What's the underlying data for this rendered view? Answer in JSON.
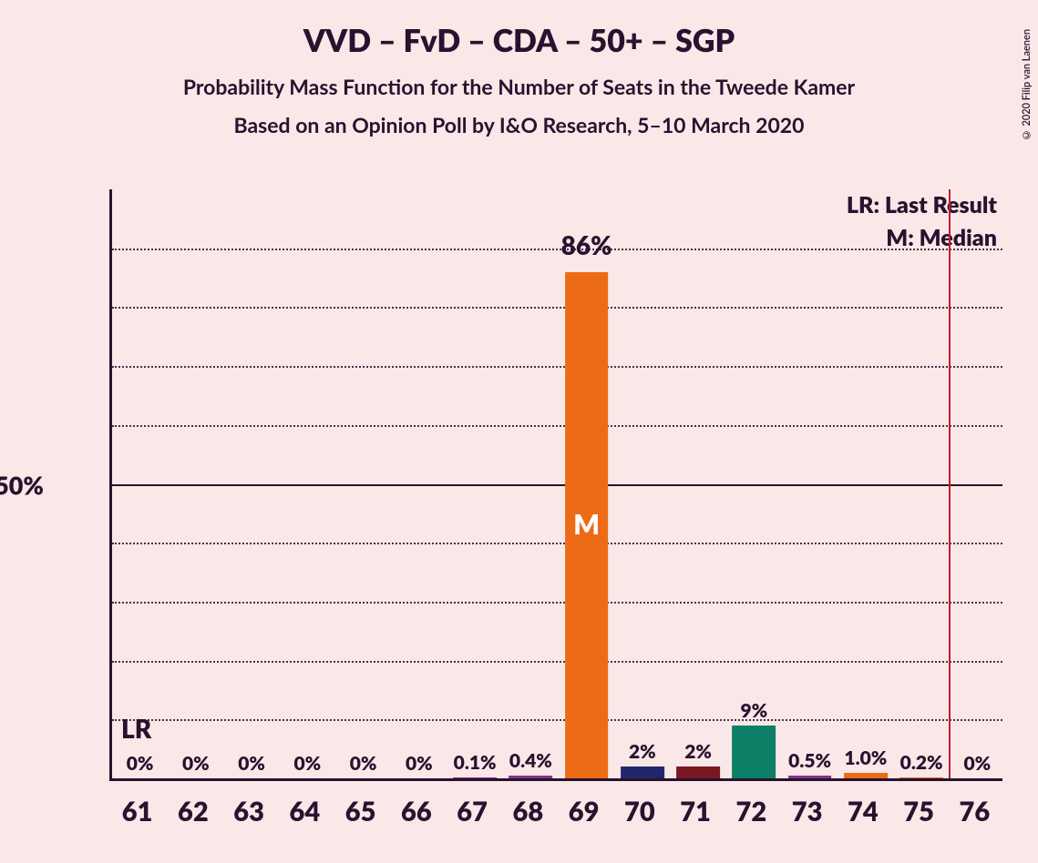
{
  "title": "VVD – FvD – CDA – 50+ – SGP",
  "subtitle": "Probability Mass Function for the Number of Seats in the Tweede Kamer",
  "subtitle2": "Based on an Opinion Poll by I&O Research, 5–10 March 2020",
  "copyright": "© 2020 Filip van Laenen",
  "legend": {
    "lr": "LR: Last Result",
    "m": "M: Median"
  },
  "chart": {
    "type": "bar",
    "background_color": "#fae7e7",
    "text_color": "#26132f",
    "y_axis": {
      "max": 100,
      "tick": 50,
      "tick_label": "50%",
      "grid_step": 10
    },
    "x_categories": [
      61,
      62,
      63,
      64,
      65,
      66,
      67,
      68,
      69,
      70,
      71,
      72,
      73,
      74,
      75,
      76
    ],
    "lr_position_between": [
      75,
      76
    ],
    "lr_label": "LR",
    "median_category": 69,
    "median_letter": "M",
    "bars": [
      {
        "x": 61,
        "v": 0,
        "label": "0%",
        "color": "#ed6b16"
      },
      {
        "x": 62,
        "v": 0,
        "label": "0%",
        "color": "#ed6b16"
      },
      {
        "x": 63,
        "v": 0,
        "label": "0%",
        "color": "#ed6b16"
      },
      {
        "x": 64,
        "v": 0,
        "label": "0%",
        "color": "#ed6b16"
      },
      {
        "x": 65,
        "v": 0,
        "label": "0%",
        "color": "#ed6b16"
      },
      {
        "x": 66,
        "v": 0,
        "label": "0%",
        "color": "#ed6b16"
      },
      {
        "x": 67,
        "v": 0.1,
        "label": "0.1%",
        "color": "#892e87"
      },
      {
        "x": 68,
        "v": 0.4,
        "label": "0.4%",
        "color": "#892e87"
      },
      {
        "x": 69,
        "v": 86,
        "label": "86%",
        "label_big": true,
        "color": "#ed6b16"
      },
      {
        "x": 70,
        "v": 2,
        "label": "2%",
        "color": "#21276b"
      },
      {
        "x": 71,
        "v": 2,
        "label": "2%",
        "color": "#7a1721"
      },
      {
        "x": 72,
        "v": 9,
        "label": "9%",
        "color": "#0b8066"
      },
      {
        "x": 73,
        "v": 0.5,
        "label": "0.5%",
        "color": "#892e87"
      },
      {
        "x": 74,
        "v": 1.0,
        "label": "1.0%",
        "color": "#ed6b16"
      },
      {
        "x": 75,
        "v": 0.2,
        "label": "0.2%",
        "color": "#ed6b16"
      },
      {
        "x": 76,
        "v": 0,
        "label": "0%",
        "color": "#ed6b16"
      }
    ]
  }
}
